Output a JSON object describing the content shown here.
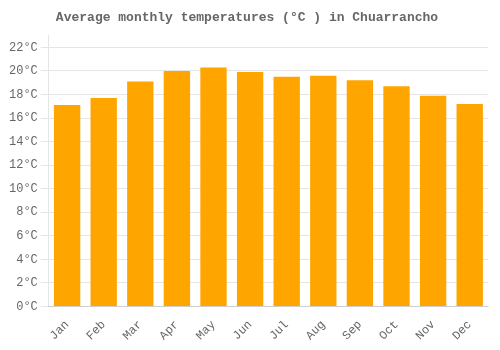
{
  "chart_data": {
    "type": "bar",
    "title": "Average monthly temperatures (°C ) in Chuarrancho",
    "categories": [
      "Jan",
      "Feb",
      "Mar",
      "Apr",
      "May",
      "Jun",
      "Jul",
      "Aug",
      "Sep",
      "Oct",
      "Nov",
      "Dec"
    ],
    "values": [
      17.1,
      17.7,
      19.1,
      20.0,
      20.3,
      19.9,
      19.5,
      19.6,
      19.2,
      18.7,
      17.9,
      17.2
    ],
    "color": "#FFA500",
    "ylim": [
      0,
      23
    ],
    "yticks": [
      {
        "value": 0,
        "label": "0°C"
      },
      {
        "value": 2,
        "label": "2°C"
      },
      {
        "value": 4,
        "label": "4°C"
      },
      {
        "value": 6,
        "label": "6°C"
      },
      {
        "value": 8,
        "label": "8°C"
      },
      {
        "value": 10,
        "label": "10°C"
      },
      {
        "value": 12,
        "label": "12°C"
      },
      {
        "value": 14,
        "label": "14°C"
      },
      {
        "value": 16,
        "label": "16°C"
      },
      {
        "value": 18,
        "label": "18°C"
      },
      {
        "value": 20,
        "label": "20°C"
      },
      {
        "value": 22,
        "label": "22°C"
      }
    ],
    "grid": true
  }
}
